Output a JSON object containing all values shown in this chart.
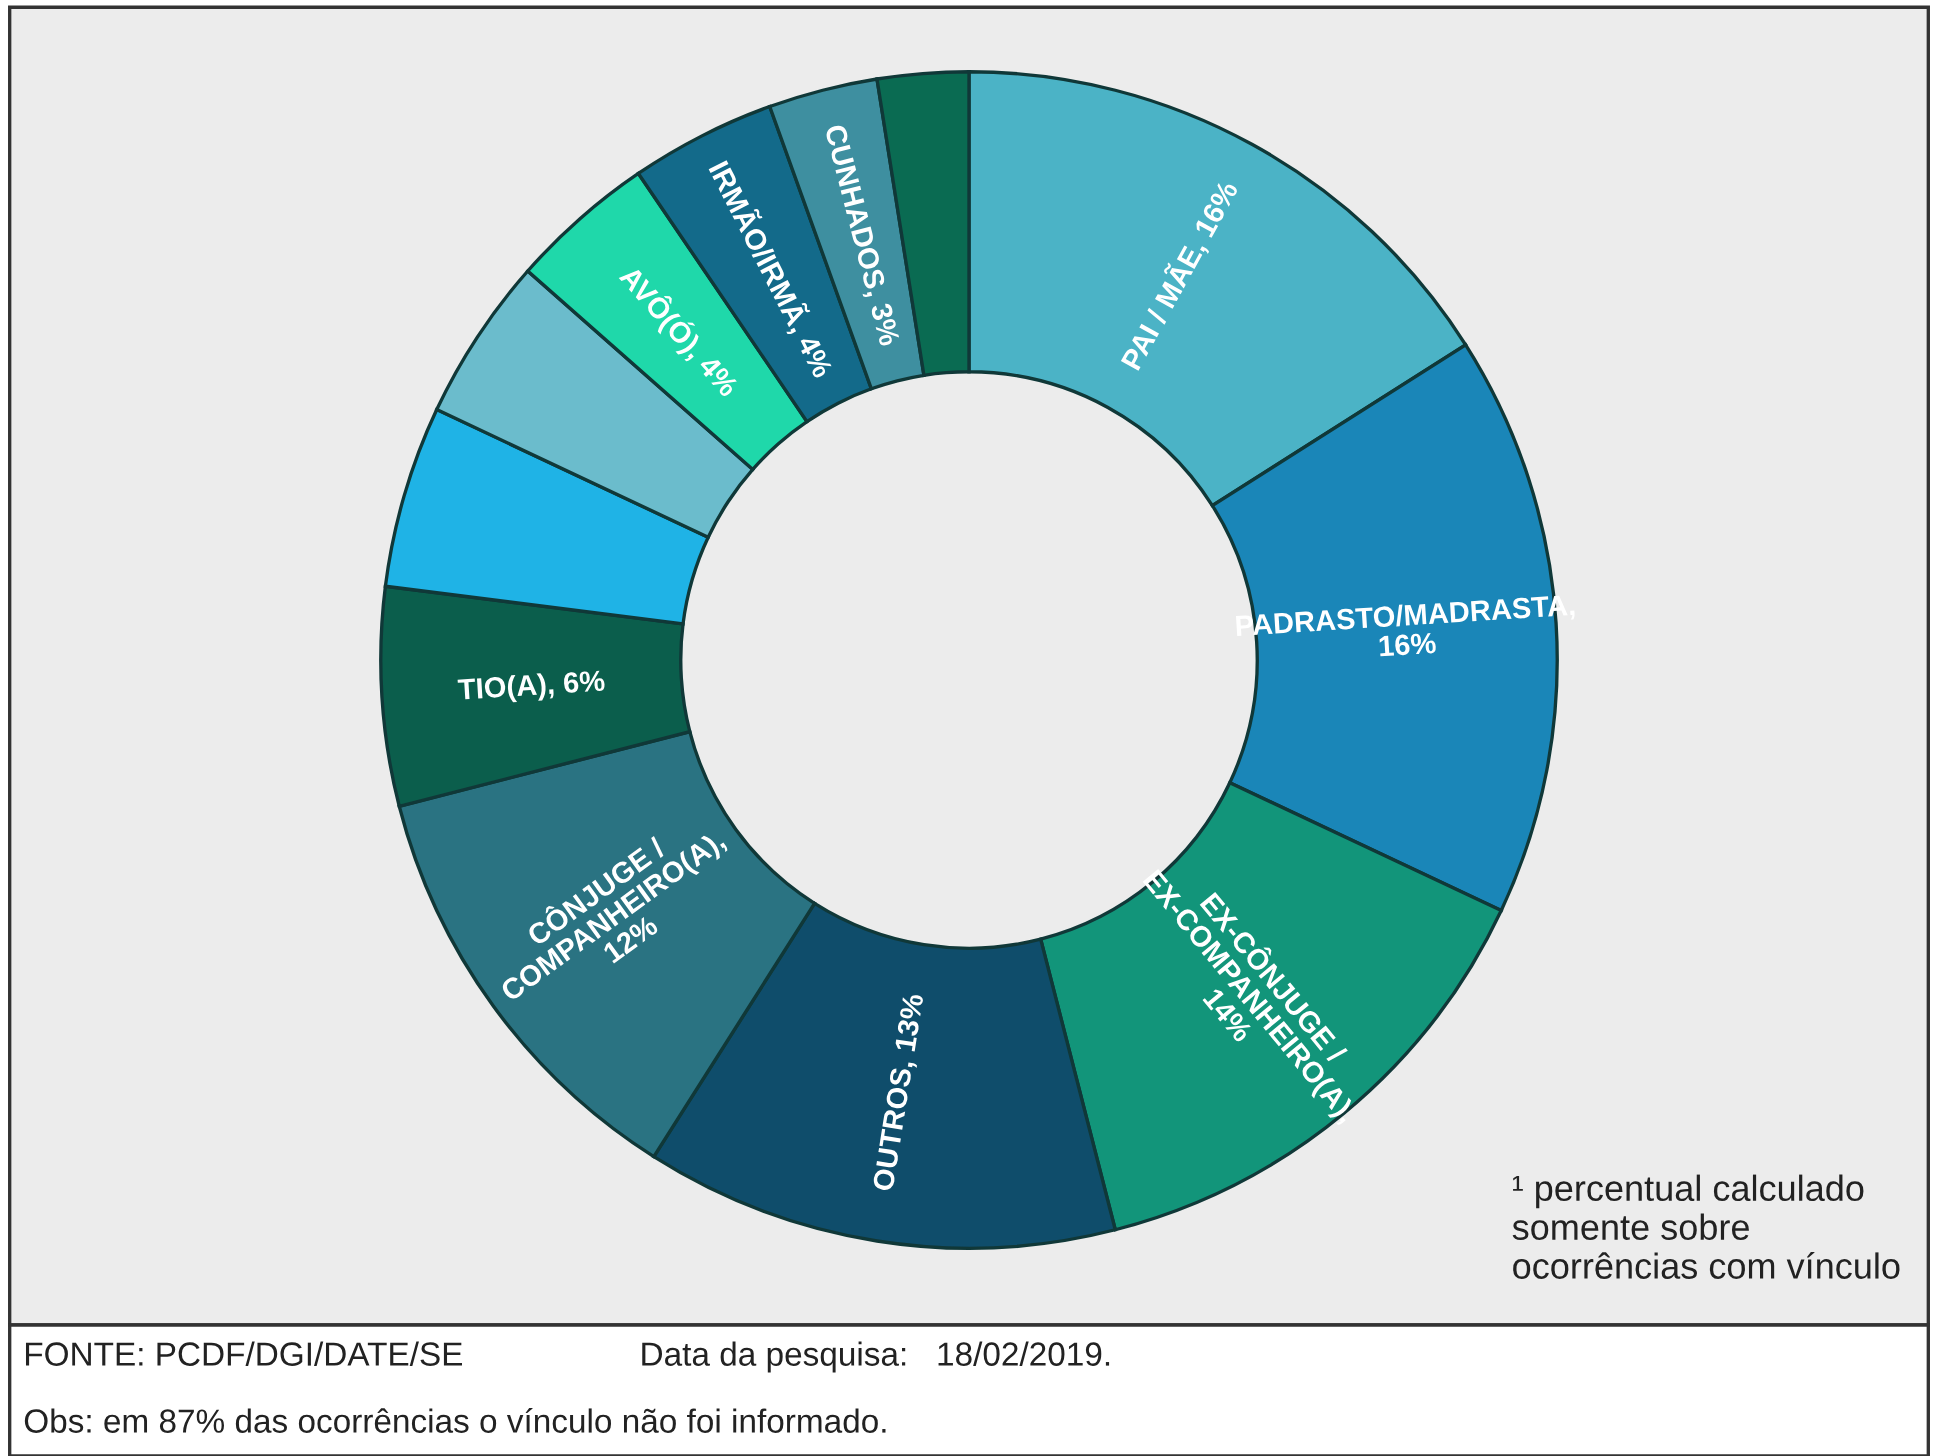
{
  "chart_data": {
    "type": "donut",
    "categories": [
      "PAI / MÃE, 16%",
      "PADRASTO/MADRASTA, 16%",
      "EX-CÔNJUGE / EX-COMPANHEIRO(A), 14%",
      "OUTROS, 13%",
      "CÔNJUGE / COMPANHEIRO(A), 12%",
      "TIO(A), 6%",
      null,
      null,
      "AVÔ(Ó), 4%",
      "IRMÃO/IRMÃ, 4%",
      "CUNHADOS, 3%",
      null
    ],
    "values": [
      16,
      16,
      14,
      13,
      12,
      6,
      5,
      4.5,
      4,
      4,
      3,
      2.5
    ],
    "colors": [
      "#4bb3c6",
      "#1a86b8",
      "#12957a",
      "#0f4d6b",
      "#2a7382",
      "#0b5e4c",
      "#1fb3e6",
      "#6bbccc",
      "#1fd8aa",
      "#136a8a",
      "#3e8fa0",
      "#0a6b52"
    ],
    "annotations": [
      "¹ percentual calculado\nsomente sobre\nocorrências com vínculo",
      "FONTE: PCDF/DGI/DATE/SE",
      "Data da pesquisa:   18/02/2019.",
      "Obs: em 87% das ocorrências o vínculo não foi informado."
    ]
  }
}
